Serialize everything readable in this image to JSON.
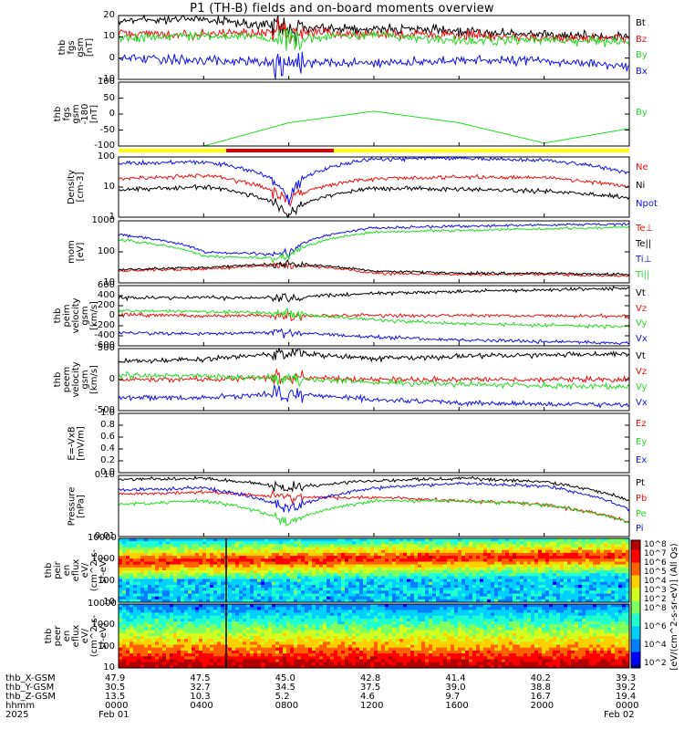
{
  "title": "P1 (TH-B) fields and on-board moments overview",
  "colors": {
    "black": "#000000",
    "red": "#ee1111",
    "green": "#22dd22",
    "blue": "#1111ee",
    "yellow": "#ffff00"
  },
  "panels": [
    {
      "id": "fgs_gsm",
      "ylabel": [
        "thb",
        "fgs",
        "gsm",
        "[nT]"
      ],
      "ticks": [
        "20",
        "10",
        "0",
        "-10"
      ],
      "legend": [
        [
          "Bt",
          "black"
        ],
        [
          "Bz",
          "red"
        ],
        [
          "By",
          "green"
        ],
        [
          "Bx",
          "blue"
        ]
      ]
    },
    {
      "id": "fgs_gsm_by",
      "ylabel": [
        "thb",
        "fgs",
        "gsm",
        "-180",
        "[nT]"
      ],
      "ticks": [
        "100",
        "50",
        "0",
        "-50",
        "-100"
      ],
      "legend": [
        [
          "By",
          "green"
        ]
      ]
    },
    {
      "id": "density",
      "ylabel": [
        "Density",
        "[cm-3]"
      ],
      "ticks": [
        "100",
        "10",
        "1"
      ],
      "legend": [
        [
          "Ne",
          "red"
        ],
        [
          "Ni",
          "black"
        ],
        [
          "Npot",
          "blue"
        ]
      ]
    },
    {
      "id": "temps",
      "ylabel": [
        "mom",
        "[eV]"
      ],
      "ticks": [
        "1000",
        "100",
        "10"
      ],
      "legend": [
        [
          "Te⊥",
          "red"
        ],
        [
          "Te||",
          "black"
        ],
        [
          "Ti⊥",
          "blue"
        ],
        [
          "Ti||",
          "green"
        ]
      ]
    },
    {
      "id": "peim_velocity",
      "ylabel": [
        "thb",
        "peim",
        "velocity",
        "gsm",
        "[km/s]"
      ],
      "ticks": [
        "600",
        "400",
        "200",
        "0",
        "-200",
        "-400",
        "-600"
      ],
      "legend": [
        [
          "Vt",
          "black"
        ],
        [
          "Vz",
          "red"
        ],
        [
          "Vy",
          "green"
        ],
        [
          "Vx",
          "blue"
        ]
      ]
    },
    {
      "id": "peem_velocity",
      "ylabel": [
        "thb",
        "peem",
        "velocity",
        "gsm",
        "[km/s]"
      ],
      "ticks": [
        "500",
        "0",
        "-500"
      ],
      "legend": [
        [
          "Vt",
          "black"
        ],
        [
          "Vz",
          "red"
        ],
        [
          "Vy",
          "green"
        ],
        [
          "Vx",
          "blue"
        ]
      ]
    },
    {
      "id": "efield",
      "ylabel": [
        "E=-VxB",
        "[mV/m]"
      ],
      "ticks": [
        "1.0",
        "0.8",
        "0.6",
        "0.4",
        "0.2",
        "0.0"
      ],
      "legend": [
        [
          "Ez",
          "red"
        ],
        [
          "Ey",
          "green"
        ],
        [
          "Ex",
          "blue"
        ]
      ]
    },
    {
      "id": "pressure",
      "ylabel": [
        "Pressure",
        "[nPa]"
      ],
      "ticks": [
        "0.10",
        "0.01"
      ],
      "legend": [
        [
          "Pt",
          "black"
        ],
        [
          "Pb",
          "red"
        ],
        [
          "Pe",
          "green"
        ],
        [
          "Pi",
          "blue"
        ]
      ]
    },
    {
      "id": "peir_spec",
      "ylabel": [
        "thb",
        "peir",
        "en",
        "eflux",
        "eV/",
        "(cm^2-s-",
        "sr-eV)"
      ],
      "ticks": [
        "10000",
        "1000",
        "100",
        "10"
      ]
    },
    {
      "id": "peer_spec",
      "ylabel": [
        "thb",
        "peer",
        "en",
        "eflux",
        "eV/",
        "(cm^2-s-",
        "sr-eV)"
      ],
      "ticks": [
        "10000",
        "1000",
        "100",
        "10"
      ]
    }
  ],
  "colorbar": {
    "label": "[eV/(cm^2-s-sr-eV)] (All Qs)",
    "ticks": [
      "10^8",
      "10^7",
      "10^6",
      "10^5",
      "10^4",
      "10^3",
      "10^2",
      "10^8",
      "10^6",
      "10^4",
      "10^2"
    ]
  },
  "footer": {
    "row_labels": [
      "thb_X-GSM",
      "thb_Y-GSM",
      "thb_Z-GSM",
      "hhmm",
      "2025"
    ],
    "columns": [
      [
        "47.9",
        "30.5",
        "13.5",
        "0000",
        "Feb 01"
      ],
      [
        "47.5",
        "32.7",
        "10.3",
        "0400",
        ""
      ],
      [
        "45.0",
        "34.5",
        "5.2",
        "0800",
        ""
      ],
      [
        "42.8",
        "37.5",
        "4.6",
        "1200",
        ""
      ],
      [
        "41.4",
        "39.0",
        "9.7",
        "1600",
        ""
      ],
      [
        "40.2",
        "38.8",
        "16.7",
        "2000",
        ""
      ],
      [
        "39.3",
        "39.2",
        "19.4",
        "0000",
        "Feb 02"
      ]
    ]
  },
  "chart_data": {
    "type": "line",
    "title": "P1 (TH-B) fields and on-board moments overview",
    "x": [
      "0000",
      "0400",
      "0800",
      "1200",
      "1600",
      "2000",
      "0000"
    ],
    "x_dates": [
      "Feb 01",
      "",
      "",
      "",
      "",
      "",
      "Feb 02"
    ],
    "panels": [
      {
        "ylim": [
          -20,
          20
        ],
        "series": [
          {
            "name": "Bt",
            "values": [
              17,
              18,
              12,
              12,
              10,
              8,
              6
            ]
          },
          {
            "name": "Bz",
            "values": [
              9,
              8,
              10,
              8,
              8,
              6,
              6
            ]
          },
          {
            "name": "By",
            "values": [
              6,
              8,
              5,
              8,
              4,
              5,
              3
            ]
          },
          {
            "name": "Bx",
            "values": [
              -7,
              -8,
              -10,
              -10,
              -8,
              -8,
              -12
            ]
          }
        ]
      },
      {
        "ylim": [
          -120,
          100
        ],
        "series": [
          {
            "name": "By",
            "values": [
              -150,
              -120,
              -40,
              0,
              -40,
              -110,
              -60
            ]
          }
        ]
      },
      {
        "scale": "log",
        "ylim": [
          0.8,
          120
        ],
        "series": [
          {
            "name": "Ne",
            "values": [
              20,
              25,
              3,
              20,
              22,
              22,
              10
            ]
          },
          {
            "name": "Ni",
            "values": [
              8,
              10,
              1,
              9,
              8,
              7,
              4
            ]
          },
          {
            "name": "Npot",
            "values": [
              70,
              80,
              3,
              100,
              110,
              90,
              30
            ]
          }
        ]
      },
      {
        "scale": "log",
        "ylim": [
          8,
          3000
        ],
        "series": [
          {
            "name": "Te⊥",
            "values": [
              25,
              30,
              45,
              20,
              18,
              18,
              15
            ]
          },
          {
            "name": "Te||",
            "values": [
              28,
              35,
              50,
              25,
              20,
              20,
              18
            ]
          },
          {
            "name": "Ti⊥",
            "values": [
              800,
              150,
              120,
              1500,
              1800,
              2000,
              2200
            ]
          },
          {
            "name": "Ti||",
            "values": [
              500,
              100,
              80,
              1000,
              1200,
              1400,
              1600
            ]
          }
        ]
      },
      {
        "ylim": [
          -700,
          700
        ],
        "series": [
          {
            "name": "Vt",
            "values": [
              420,
              420,
              420,
              520,
              560,
              600,
              640
            ]
          },
          {
            "name": "Vz",
            "values": [
              20,
              0,
              0,
              0,
              0,
              0,
              -20
            ]
          },
          {
            "name": "Vy",
            "values": [
              120,
              100,
              60,
              -100,
              -180,
              -220,
              -260
            ]
          },
          {
            "name": "Vx",
            "values": [
              -400,
              -420,
              -380,
              -500,
              -560,
              -600,
              -640
            ]
          }
        ]
      },
      {
        "ylim": [
          -700,
          700
        ],
        "series": [
          {
            "name": "Vt",
            "values": [
              420,
              450,
              600,
              480,
              520,
              560,
              580
            ]
          },
          {
            "name": "Vz",
            "values": [
              0,
              0,
              50,
              0,
              0,
              0,
              0
            ]
          },
          {
            "name": "Vy",
            "values": [
              100,
              80,
              30,
              -60,
              -100,
              -140,
              -160
            ]
          },
          {
            "name": "Vx",
            "values": [
              -400,
              -420,
              -300,
              -460,
              -520,
              -560,
              -560
            ]
          }
        ]
      },
      {
        "ylim": [
          0,
          1
        ],
        "series": [
          {
            "name": "Ez",
            "values": []
          },
          {
            "name": "Ey",
            "values": []
          },
          {
            "name": "Ex",
            "values": []
          }
        ]
      },
      {
        "scale": "log",
        "ylim": [
          0.007,
          0.2
        ],
        "series": [
          {
            "name": "Pt",
            "values": [
              0.16,
              0.17,
              0.1,
              0.15,
              0.17,
              0.14,
              0.05
            ]
          },
          {
            "name": "Pb",
            "values": [
              0.07,
              0.08,
              0.06,
              0.06,
              0.05,
              0.04,
              0.015
            ]
          },
          {
            "name": "Pe",
            "values": [
              0.04,
              0.05,
              0.015,
              0.05,
              0.05,
              0.04,
              0.015
            ]
          },
          {
            "name": "Pi",
            "values": [
              0.09,
              0.1,
              0.03,
              0.1,
              0.13,
              0.11,
              0.03
            ]
          }
        ]
      }
    ],
    "orbit": {
      "X-GSM": [
        47.9,
        47.5,
        45.0,
        42.8,
        41.4,
        40.2,
        39.3
      ],
      "Y-GSM": [
        30.5,
        32.7,
        34.5,
        37.5,
        39.0,
        38.8,
        39.2
      ],
      "Z-GSM": [
        13.5,
        10.3,
        5.2,
        4.6,
        9.7,
        16.7,
        19.4
      ]
    }
  }
}
